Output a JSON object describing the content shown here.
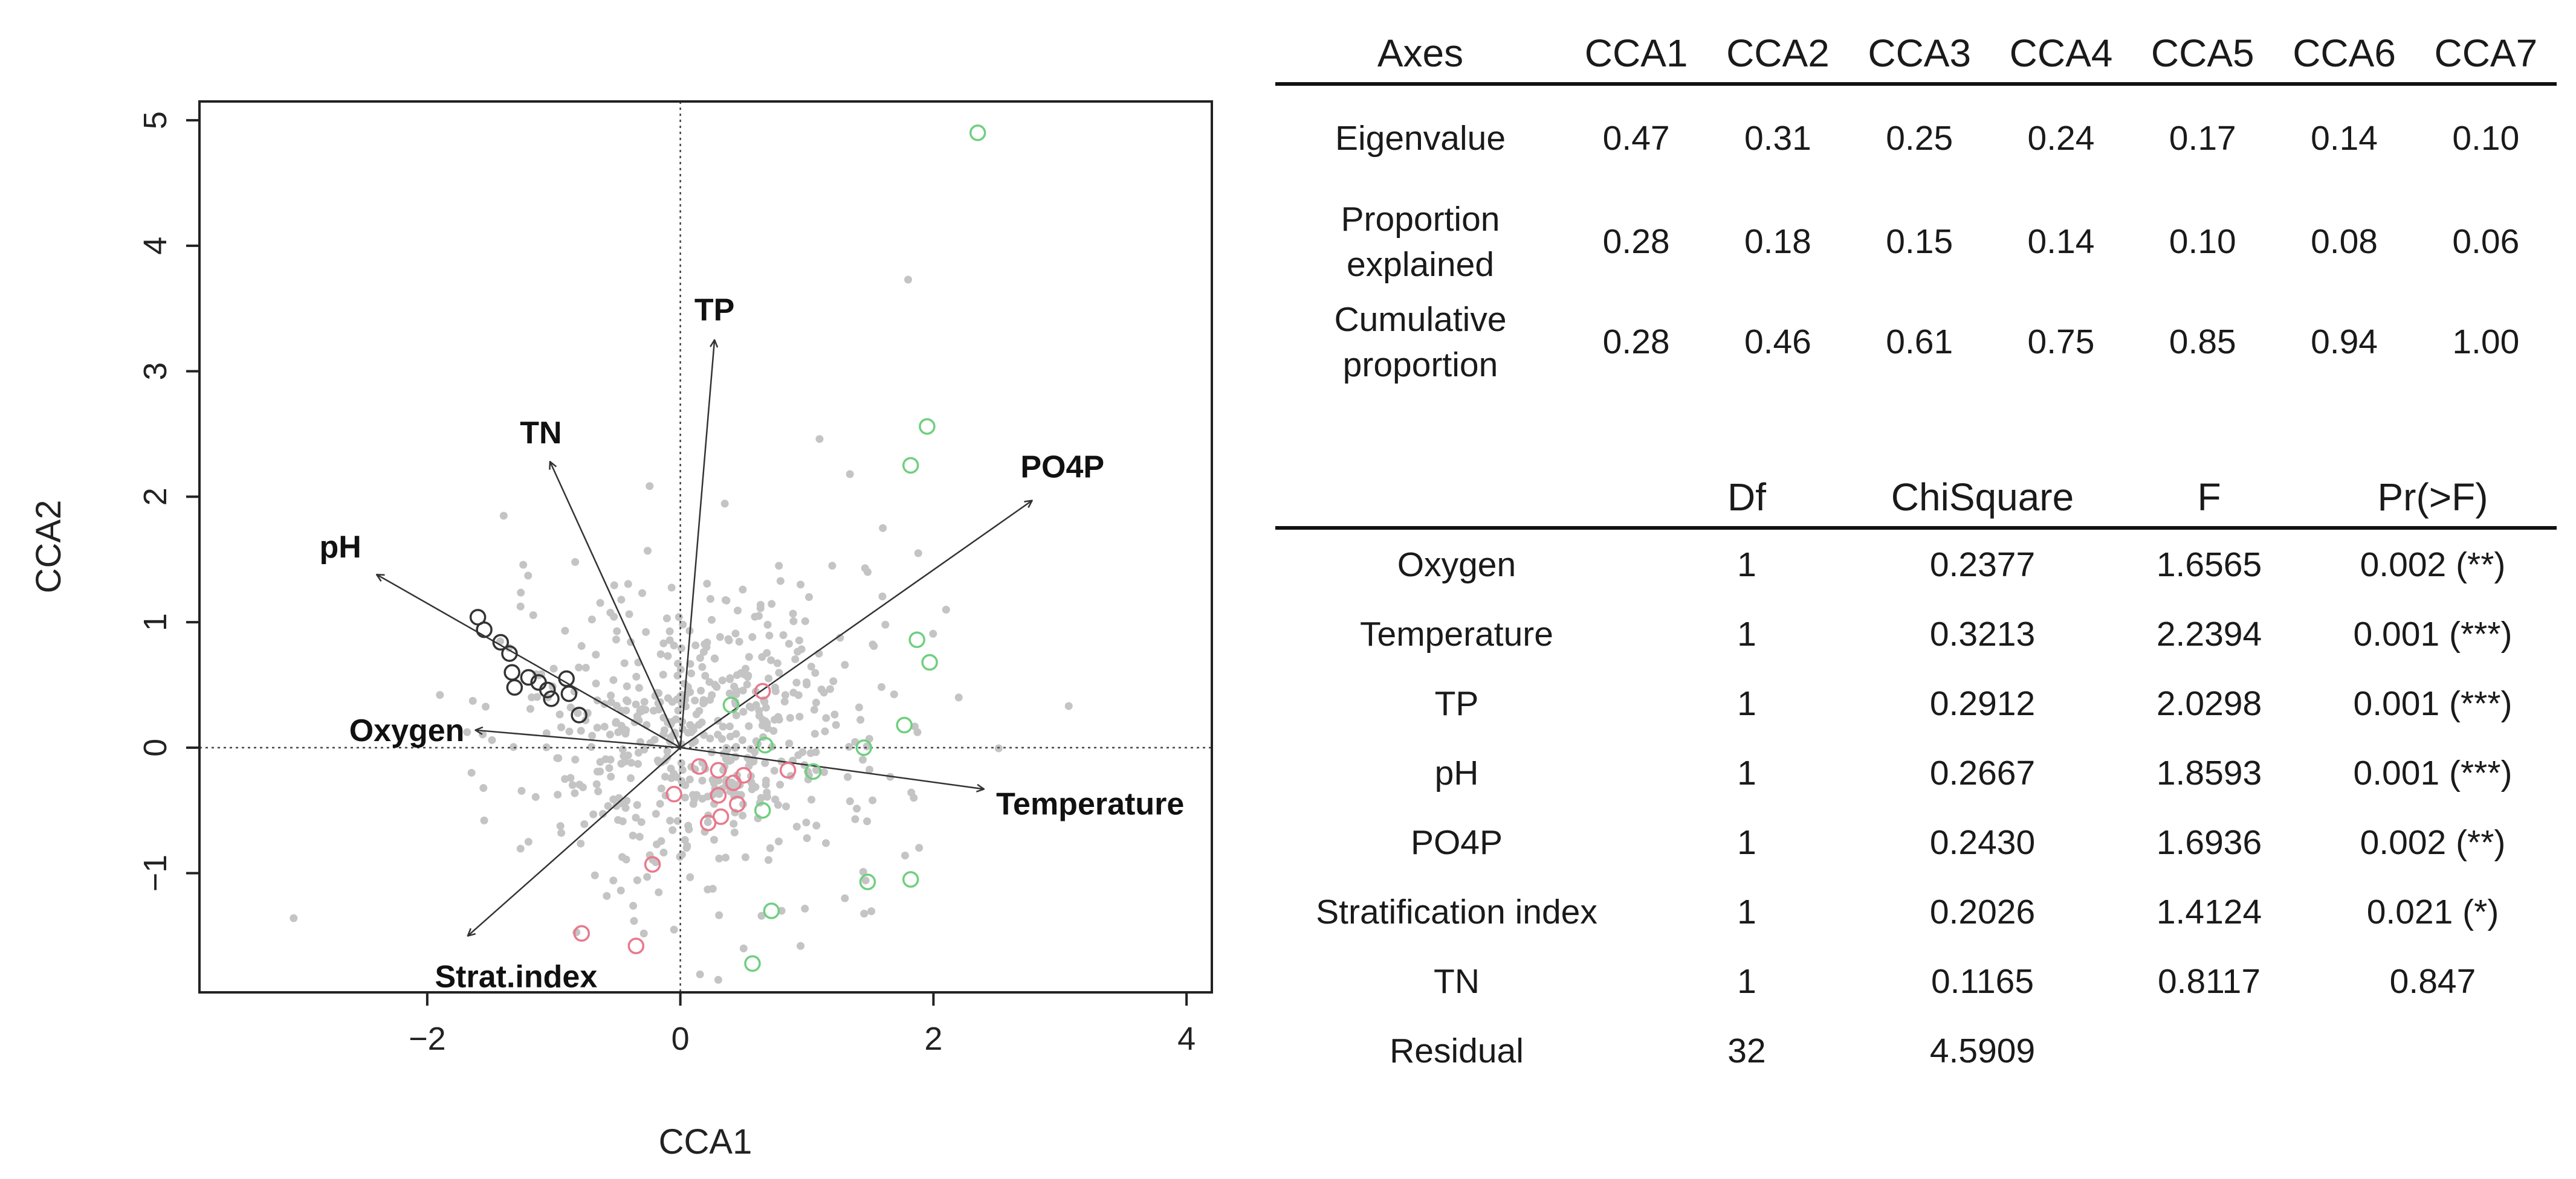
{
  "chart_data": [
    {
      "type": "scatter",
      "title": "",
      "xlabel": "CCA1",
      "ylabel": "CCA2",
      "xlim": [
        -3.8,
        4.2
      ],
      "ylim": [
        -1.95,
        5.15
      ],
      "xticks": [
        -2,
        0,
        2,
        4
      ],
      "yticks": [
        -1,
        0,
        1,
        2,
        3,
        4,
        5
      ],
      "xtick_labels": [
        "−2",
        "0",
        "2",
        "4"
      ],
      "ytick_labels": [
        "−1",
        "0",
        "1",
        "2",
        "3",
        "4",
        "5"
      ],
      "reference_lines": {
        "x": 0,
        "y": 0,
        "style": "dotted"
      },
      "biplot_arrows": [
        {
          "label": "TP",
          "x": 0.27,
          "y": 3.25
        },
        {
          "label": "TN",
          "x": -1.03,
          "y": 2.28
        },
        {
          "label": "PO4P",
          "x": 2.78,
          "y": 1.97
        },
        {
          "label": "pH",
          "x": -2.4,
          "y": 1.38
        },
        {
          "label": "Oxygen",
          "x": -1.62,
          "y": 0.14
        },
        {
          "label": "Temperature",
          "x": 2.4,
          "y": -0.33
        },
        {
          "label": "Strat.index",
          "x": -1.68,
          "y": -1.5
        }
      ],
      "series": [
        {
          "name": "black sites",
          "color": "#333333",
          "marker": "open-circle",
          "points": [
            [
              -1.6,
              1.04
            ],
            [
              -1.55,
              0.94
            ],
            [
              -1.42,
              0.84
            ],
            [
              -1.35,
              0.75
            ],
            [
              -1.33,
              0.6
            ],
            [
              -1.31,
              0.48
            ],
            [
              -1.2,
              0.56
            ],
            [
              -1.12,
              0.52
            ],
            [
              -1.05,
              0.46
            ],
            [
              -1.02,
              0.39
            ],
            [
              -0.9,
              0.55
            ],
            [
              -0.88,
              0.43
            ],
            [
              -0.8,
              0.26
            ]
          ]
        },
        {
          "name": "red sites",
          "color": "#e8798c",
          "marker": "open-circle",
          "points": [
            [
              0.65,
              0.45
            ],
            [
              0.15,
              -0.15
            ],
            [
              0.3,
              -0.18
            ],
            [
              0.42,
              -0.28
            ],
            [
              0.5,
              -0.22
            ],
            [
              0.85,
              -0.18
            ],
            [
              0.3,
              -0.38
            ],
            [
              0.45,
              -0.45
            ],
            [
              0.32,
              -0.55
            ],
            [
              0.22,
              -0.6
            ],
            [
              -0.05,
              -0.37
            ],
            [
              -0.22,
              -0.93
            ],
            [
              -0.78,
              -1.48
            ],
            [
              -0.35,
              -1.58
            ]
          ]
        },
        {
          "name": "green sites",
          "color": "#6fcf7f",
          "marker": "open-circle",
          "points": [
            [
              2.35,
              4.9
            ],
            [
              1.95,
              2.56
            ],
            [
              1.82,
              2.25
            ],
            [
              1.87,
              0.86
            ],
            [
              1.97,
              0.68
            ],
            [
              1.77,
              0.18
            ],
            [
              0.4,
              0.34
            ],
            [
              0.67,
              0.02
            ],
            [
              1.45,
              0.0
            ],
            [
              1.05,
              -0.19
            ],
            [
              0.65,
              -0.5
            ],
            [
              1.48,
              -1.07
            ],
            [
              1.82,
              -1.05
            ],
            [
              0.72,
              -1.3
            ],
            [
              0.57,
              -1.72
            ]
          ]
        },
        {
          "name": "species",
          "color": "#c4c4c4",
          "marker": "filled-dot",
          "generated_cloud": {
            "count": 560,
            "seed": 7,
            "center": [
              0.15,
              0.1
            ],
            "spread": [
              0.75,
              0.6
            ]
          },
          "points": [
            [
              1.8,
              3.73
            ],
            [
              1.1,
              2.46
            ],
            [
              1.34,
              2.18
            ],
            [
              1.6,
              1.75
            ],
            [
              1.88,
              1.55
            ],
            [
              1.48,
              1.4
            ],
            [
              1.2,
              1.45
            ],
            [
              0.95,
              1.3
            ],
            [
              0.62,
              1.05
            ],
            [
              -1.9,
              0.42
            ],
            [
              -1.65,
              -0.2
            ],
            [
              -1.55,
              -0.58
            ],
            [
              -1.2,
              -0.75
            ],
            [
              0.8,
              -1.3
            ],
            [
              0.95,
              -1.58
            ],
            [
              1.3,
              -1.2
            ],
            [
              0.3,
              -1.85
            ],
            [
              -0.05,
              -1.45
            ],
            [
              0.5,
              -1.6
            ],
            [
              2.1,
              1.1
            ],
            [
              2.2,
              0.4
            ],
            [
              1.62,
              0.98
            ],
            [
              1.3,
              0.66
            ]
          ]
        }
      ]
    },
    {
      "type": "table",
      "columns": [
        "Axes",
        "CCA1",
        "CCA2",
        "CCA3",
        "CCA4",
        "CCA5",
        "CCA6",
        "CCA7"
      ],
      "rows": [
        {
          "label": "Eigenvalue",
          "values": [
            "0.47",
            "0.31",
            "0.25",
            "0.24",
            "0.17",
            "0.14",
            "0.10"
          ]
        },
        {
          "label": "Proportion explained",
          "values": [
            "0.28",
            "0.18",
            "0.15",
            "0.14",
            "0.10",
            "0.08",
            "0.06"
          ]
        },
        {
          "label": "Cumulative proportion",
          "values": [
            "0.28",
            "0.46",
            "0.61",
            "0.75",
            "0.85",
            "0.94",
            "1.00"
          ]
        }
      ]
    },
    {
      "type": "table",
      "columns": [
        "",
        "Df",
        "ChiSquare",
        "F",
        "Pr(>F)"
      ],
      "rows": [
        {
          "label": "Oxygen",
          "values": [
            "1",
            "0.2377",
            "1.6565",
            "0.002 (**)"
          ]
        },
        {
          "label": "Temperature",
          "values": [
            "1",
            "0.3213",
            "2.2394",
            "0.001 (***)"
          ]
        },
        {
          "label": "TP",
          "values": [
            "1",
            "0.2912",
            "2.0298",
            "0.001 (***)"
          ]
        },
        {
          "label": "pH",
          "values": [
            "1",
            "0.2667",
            "1.8593",
            "0.001 (***)"
          ]
        },
        {
          "label": "PO4P",
          "values": [
            "1",
            "0.2430",
            "1.6936",
            "0.002 (**)"
          ]
        },
        {
          "label": "Stratification index",
          "values": [
            "1",
            "0.2026",
            "1.4124",
            "0.021 (*)"
          ]
        },
        {
          "label": "TN",
          "values": [
            "1",
            "0.1165",
            "0.8117",
            "0.847"
          ]
        },
        {
          "label": "Residual",
          "values": [
            "32",
            "4.5909",
            "",
            ""
          ]
        }
      ]
    }
  ]
}
